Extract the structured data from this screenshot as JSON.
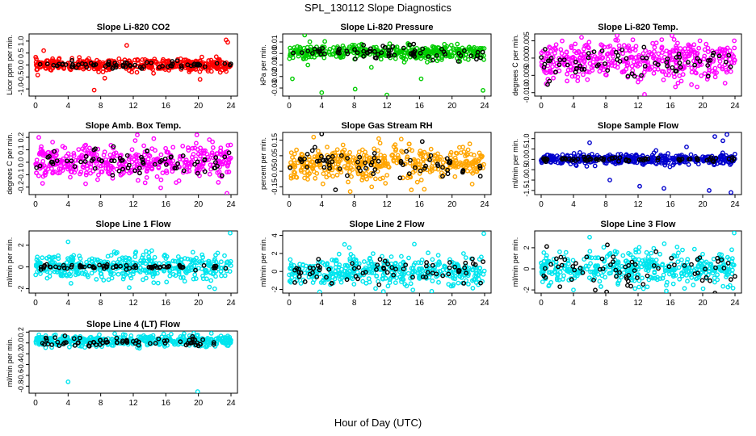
{
  "figure": {
    "title": "SPL_130112  Slope Diagnostics",
    "xlabel": "Hour of Day (UTC)"
  },
  "chart_data": [
    {
      "type": "scatter",
      "title": "Slope Li-820 CO2",
      "ylabel": "Licor ppm per min.",
      "xlim": [
        0,
        24
      ],
      "ylim": [
        -1.3,
        1.3
      ],
      "xticks": [
        0,
        4,
        8,
        12,
        16,
        20,
        24
      ],
      "yticks": [
        -1.0,
        -0.5,
        0.0,
        0.5,
        1.0
      ],
      "yticklabels": [
        "-1.0",
        "-0.5",
        "0.0",
        "0.5",
        "1.0"
      ],
      "series": [
        {
          "color": "#ff0000",
          "center": 0.0,
          "spread": 0.12,
          "outliers": [
            [
              7.2,
              -1.05
            ],
            [
              11.2,
              0.82
            ],
            [
              23.6,
              0.95
            ],
            [
              23.4,
              1.05
            ],
            [
              20.2,
              -0.6
            ],
            [
              8.5,
              -0.55
            ],
            [
              1.0,
              0.6
            ]
          ]
        },
        {
          "color": "#000000",
          "center": 0.0,
          "spread": 0.08,
          "outliers": []
        }
      ]
    },
    {
      "type": "scatter",
      "title": "Slope Li-820 Pressure",
      "ylabel": "kPa per min.",
      "xlim": [
        0,
        24
      ],
      "ylim": [
        -0.037,
        0.017
      ],
      "xticks": [
        0,
        4,
        8,
        12,
        16,
        20,
        24
      ],
      "yticks": [
        -0.03,
        -0.02,
        -0.01,
        0.0,
        0.01
      ],
      "yticklabels": [
        "-0.03",
        "-0.02",
        "-0.01",
        "0.00",
        "0.01"
      ],
      "series": [
        {
          "color": "#00cc00",
          "center": 0.001,
          "spread": 0.003,
          "outliers": [
            [
              1.9,
              0.016
            ],
            [
              4.0,
              -0.034
            ],
            [
              8.1,
              -0.031
            ],
            [
              12.0,
              -0.036
            ],
            [
              16.2,
              -0.022
            ],
            [
              23.8,
              -0.032
            ],
            [
              0.4,
              -0.022
            ],
            [
              2.3,
              -0.01
            ],
            [
              10.1,
              -0.012
            ]
          ]
        },
        {
          "color": "#000000",
          "center": 0.001,
          "spread": 0.003,
          "outliers": []
        }
      ]
    },
    {
      "type": "scatter",
      "title": "Slope Li-820 Temp.",
      "ylabel": "degrees C per min.",
      "xlim": [
        0,
        24
      ],
      "ylim": [
        -0.011,
        0.007
      ],
      "xticks": [
        0,
        4,
        8,
        12,
        16,
        20,
        24
      ],
      "yticks": [
        -0.01,
        -0.005,
        0.0,
        0.005
      ],
      "yticklabels": [
        "-0.010",
        "-0.005",
        "0.000",
        "0.005"
      ],
      "series": [
        {
          "color": "#ff00ff",
          "center": -0.001,
          "spread": 0.0028,
          "outliers": [
            [
              12.8,
              -0.0105
            ],
            [
              9.4,
              0.0065
            ],
            [
              16.2,
              0.0065
            ],
            [
              5.0,
              0.006
            ]
          ]
        },
        {
          "color": "#000000",
          "center": -0.001,
          "spread": 0.002,
          "outliers": []
        }
      ]
    },
    {
      "type": "scatter",
      "title": "Slope Amb. Box Temp.",
      "ylabel": "degrees C per min.",
      "xlim": [
        0,
        24
      ],
      "ylim": [
        -0.26,
        0.24
      ],
      "xticks": [
        0,
        4,
        8,
        12,
        16,
        20,
        24
      ],
      "yticks": [
        -0.2,
        -0.1,
        0.0,
        0.1,
        0.2
      ],
      "yticklabels": [
        "-0.2",
        "-0.1",
        "0.0",
        "0.1",
        "0.2"
      ],
      "series": [
        {
          "color": "#ff00ff",
          "center": 0.0,
          "spread": 0.07,
          "outliers": [
            [
              23.5,
              -0.25
            ],
            [
              12.5,
              0.22
            ],
            [
              19.8,
              0.22
            ],
            [
              0.4,
              0.2
            ]
          ]
        },
        {
          "color": "#000000",
          "center": 0.0,
          "spread": 0.06,
          "outliers": []
        }
      ]
    },
    {
      "type": "scatter",
      "title": "Slope Gas Stream RH",
      "ylabel": "percent per min.",
      "xlim": [
        0,
        24
      ],
      "ylim": [
        -0.2,
        0.2
      ],
      "xticks": [
        0,
        4,
        8,
        12,
        16,
        20,
        24
      ],
      "yticks": [
        -0.15,
        -0.05,
        0.05,
        0.15
      ],
      "yticklabels": [
        "-0.15",
        "-0.05",
        "0.05",
        "0.15"
      ],
      "series": [
        {
          "color": "#ffa500",
          "center": 0.0,
          "spread": 0.05,
          "outliers": [
            [
              3.0,
              0.17
            ],
            [
              11.0,
              0.16
            ],
            [
              7.5,
              -0.18
            ],
            [
              15.0,
              -0.17
            ]
          ]
        },
        {
          "color": "#000000",
          "center": 0.0,
          "spread": 0.05,
          "outliers": [
            [
              4.0,
              0.19
            ]
          ]
        }
      ]
    },
    {
      "type": "scatter",
      "title": "Slope Sample Flow",
      "ylabel": "ml/min per min.",
      "xlim": [
        0,
        24
      ],
      "ylim": [
        -1.7,
        1.3
      ],
      "xticks": [
        0,
        4,
        8,
        12,
        16,
        20,
        24
      ],
      "yticks": [
        -1.5,
        -1.0,
        -0.5,
        0.0,
        0.5,
        1.0
      ],
      "yticklabels": [
        "-1.5",
        "-1.0",
        "-0.5",
        "0.0",
        "0.5",
        "1.0"
      ],
      "series": [
        {
          "color": "#0000cc",
          "center": 0.0,
          "spread": 0.12,
          "outliers": [
            [
              21.5,
              1.1
            ],
            [
              22.5,
              0.9
            ],
            [
              23.0,
              1.2
            ],
            [
              15.2,
              -1.4
            ],
            [
              12.2,
              -1.3
            ],
            [
              20.8,
              -1.5
            ],
            [
              6.0,
              0.8
            ],
            [
              8.5,
              -1.0
            ],
            [
              18.0,
              0.6
            ],
            [
              23.5,
              -1.6
            ]
          ]
        },
        {
          "color": "#000000",
          "center": 0.0,
          "spread": 0.05,
          "outliers": []
        }
      ]
    },
    {
      "type": "scatter",
      "title": "Slope Line 1 Flow",
      "ylabel": "ml/min per min.",
      "xlim": [
        0,
        24
      ],
      "ylim": [
        -2.4,
        3.3
      ],
      "xticks": [
        0,
        4,
        8,
        12,
        16,
        20,
        24
      ],
      "yticks": [
        -2,
        0,
        2
      ],
      "yticklabels": [
        "-2",
        "0",
        "2"
      ],
      "series": [
        {
          "color": "#00e5ee",
          "center": 0.0,
          "spread": 0.6,
          "outliers": [
            [
              23.9,
              3.1
            ],
            [
              4.0,
              2.3
            ],
            [
              22.0,
              -2.0
            ],
            [
              11.5,
              -1.9
            ]
          ]
        },
        {
          "color": "#000000",
          "center": 0.0,
          "spread": 0.1,
          "outliers": []
        }
      ]
    },
    {
      "type": "scatter",
      "title": "Slope Line 2 Flow",
      "ylabel": "ml/min per min.",
      "xlim": [
        0,
        24
      ],
      "ylim": [
        -2.4,
        4.5
      ],
      "xticks": [
        0,
        4,
        8,
        12,
        16,
        20,
        24
      ],
      "yticks": [
        -2,
        0,
        2,
        4
      ],
      "yticklabels": [
        "-2",
        "0",
        "2",
        "4"
      ],
      "series": [
        {
          "color": "#00e5ee",
          "center": 0.0,
          "spread": 0.8,
          "outliers": [
            [
              23.9,
              4.2
            ],
            [
              6.8,
              3.0
            ],
            [
              17.5,
              -2.2
            ]
          ]
        },
        {
          "color": "#000000",
          "center": 0.0,
          "spread": 0.9,
          "outliers": []
        }
      ]
    },
    {
      "type": "scatter",
      "title": "Slope Line 3 Flow",
      "ylabel": "ml/min per min.",
      "xlim": [
        0,
        24
      ],
      "ylim": [
        -2.3,
        3.6
      ],
      "xticks": [
        0,
        4,
        8,
        12,
        16,
        20,
        24
      ],
      "yticks": [
        -2,
        0,
        2
      ],
      "yticklabels": [
        "-2",
        "0",
        "2"
      ],
      "series": [
        {
          "color": "#00e5ee",
          "center": 0.0,
          "spread": 0.8,
          "outliers": [
            [
              23.9,
              3.4
            ],
            [
              6.0,
              3.0
            ],
            [
              4.0,
              -2.0
            ],
            [
              15.5,
              -2.1
            ]
          ]
        },
        {
          "color": "#000000",
          "center": 0.0,
          "spread": 0.9,
          "outliers": []
        }
      ]
    },
    {
      "type": "scatter",
      "title": "Slope Line 4 (LT) Flow",
      "ylabel": "ml/min per min.",
      "xlim": [
        0,
        24
      ],
      "ylim": [
        -0.93,
        0.22
      ],
      "xticks": [
        0,
        4,
        8,
        12,
        16,
        20,
        24
      ],
      "yticks": [
        -0.8,
        -0.6,
        -0.4,
        -0.2,
        0.0,
        0.2
      ],
      "yticklabels": [
        "-0.8",
        "-0.6",
        "-0.4",
        "-0.2",
        "0.0",
        "0.2"
      ],
      "series": [
        {
          "color": "#00e5ee",
          "center": 0.04,
          "spread": 0.05,
          "outliers": [
            [
              4.0,
              -0.72
            ],
            [
              19.9,
              -0.9
            ],
            [
              11.0,
              0.15
            ]
          ]
        },
        {
          "color": "#000000",
          "center": 0.02,
          "spread": 0.04,
          "outliers": []
        }
      ]
    }
  ]
}
